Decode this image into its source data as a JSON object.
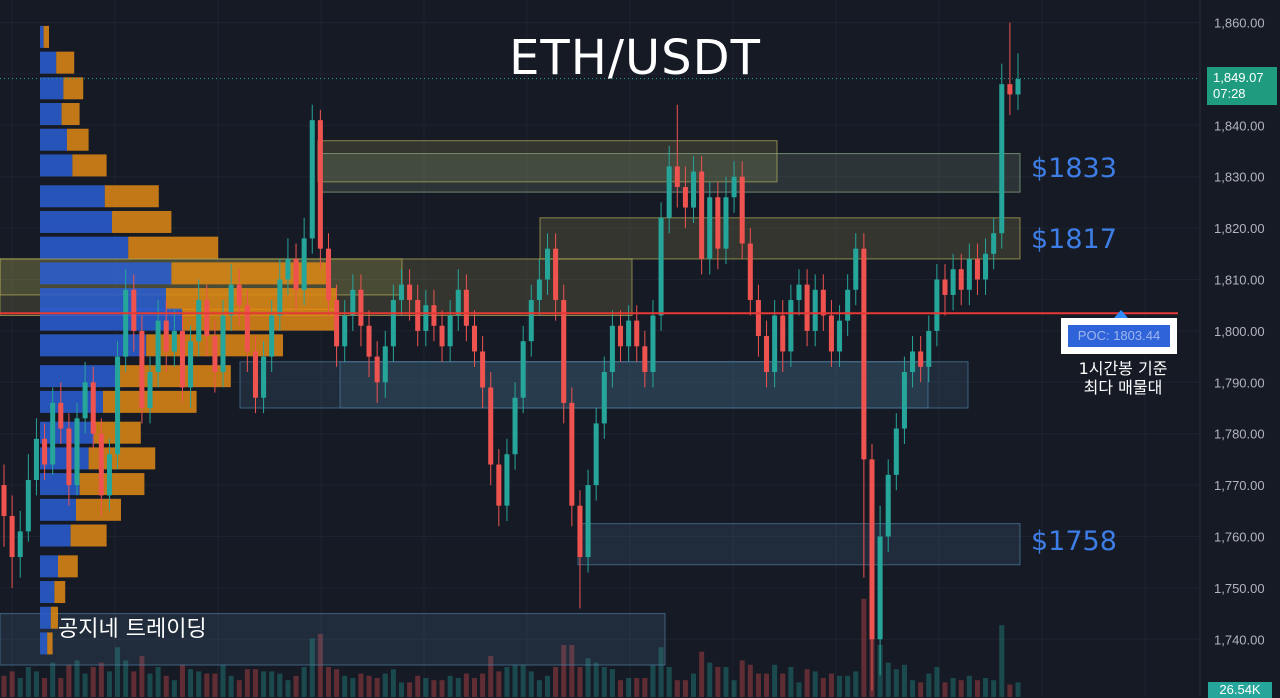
{
  "chart_data": {
    "type": "candlestick",
    "title": "ETH/USDT",
    "ylim": [
      1732,
      1862
    ],
    "y_ticks": [
      "1,860.00",
      "1,850.00",
      "1,840.00",
      "1,830.00",
      "1,820.00",
      "1,810.00",
      "1,800.00",
      "1,790.00",
      "1,780.00",
      "1,770.00",
      "1,760.00",
      "1,750.00",
      "1,740.00"
    ],
    "y_tick_values": [
      1860,
      1850,
      1840,
      1830,
      1820,
      1810,
      1800,
      1790,
      1780,
      1770,
      1760,
      1750,
      1740
    ],
    "last_price": 1849.07,
    "last_price_label": "1,849.07",
    "countdown": "07:28",
    "volume_label": "26.54K",
    "poc_value": 1803.44,
    "poc_label": "POC: 1803.44",
    "poc_note": [
      "1시간봉 기준",
      "최다 매물대"
    ],
    "levels": [
      {
        "value": 1833,
        "label": "$1833"
      },
      {
        "value": 1817,
        "label": "$1817"
      },
      {
        "value": 1758,
        "label": "$1758"
      }
    ],
    "zones": [
      {
        "top": 1837,
        "bottom": 1829,
        "color": "#b7b05a"
      },
      {
        "top": 1834.5,
        "bottom": 1827,
        "color": "#8fae88"
      },
      {
        "top": 1822,
        "bottom": 1814,
        "color": "#b7b05a"
      },
      {
        "top": 1814,
        "bottom": 1807,
        "color": "#b7b05a"
      },
      {
        "top": 1814,
        "bottom": 1803,
        "color": "#b7b05a"
      },
      {
        "top": 1794,
        "bottom": 1785,
        "color": "#4f7ea0"
      },
      {
        "top": 1794,
        "bottom": 1785,
        "color": "#4f7ea0"
      },
      {
        "top": 1762.5,
        "bottom": 1754.5,
        "color": "#4f7ea0"
      },
      {
        "top": 1745,
        "bottom": 1735,
        "color": "#4f7ea0"
      }
    ],
    "volume_profile": [
      {
        "price": 1857,
        "up": 4,
        "down": 6
      },
      {
        "price": 1852,
        "up": 18,
        "down": 20
      },
      {
        "price": 1847,
        "up": 26,
        "down": 22
      },
      {
        "price": 1842,
        "up": 24,
        "down": 20
      },
      {
        "price": 1837,
        "up": 30,
        "down": 24
      },
      {
        "price": 1832,
        "up": 36,
        "down": 38
      },
      {
        "price": 1826,
        "up": 72,
        "down": 60
      },
      {
        "price": 1821,
        "up": 80,
        "down": 66
      },
      {
        "price": 1816,
        "up": 98,
        "down": 100
      },
      {
        "price": 1811,
        "up": 146,
        "down": 174
      },
      {
        "price": 1806,
        "up": 140,
        "down": 190
      },
      {
        "price": 1802,
        "up": 158,
        "down": 172
      },
      {
        "price": 1797,
        "up": 118,
        "down": 152
      },
      {
        "price": 1791,
        "up": 86,
        "down": 126
      },
      {
        "price": 1786,
        "up": 70,
        "down": 104
      },
      {
        "price": 1780,
        "up": 60,
        "down": 52
      },
      {
        "price": 1775,
        "up": 54,
        "down": 74
      },
      {
        "price": 1770,
        "up": 44,
        "down": 72
      },
      {
        "price": 1765,
        "up": 40,
        "down": 50
      },
      {
        "price": 1760,
        "up": 34,
        "down": 40
      },
      {
        "price": 1754,
        "up": 20,
        "down": 22
      },
      {
        "price": 1749,
        "up": 16,
        "down": 12
      },
      {
        "price": 1744,
        "up": 12,
        "down": 8
      },
      {
        "price": 1739,
        "up": 8,
        "down": 6
      }
    ],
    "candles": [
      [
        1770,
        1764,
        1774,
        1758
      ],
      [
        1764,
        1756,
        1768,
        1750
      ],
      [
        1756,
        1761,
        1765,
        1752
      ],
      [
        1761,
        1771,
        1776,
        1759
      ],
      [
        1771,
        1779,
        1783,
        1768
      ],
      [
        1779,
        1774,
        1782,
        1771
      ],
      [
        1774,
        1786,
        1789,
        1772
      ],
      [
        1786,
        1781,
        1790,
        1778
      ],
      [
        1781,
        1770,
        1784,
        1766
      ],
      [
        1770,
        1783,
        1786,
        1768
      ],
      [
        1783,
        1790,
        1794,
        1780
      ],
      [
        1790,
        1780,
        1793,
        1777
      ],
      [
        1780,
        1768,
        1783,
        1764
      ],
      [
        1768,
        1776,
        1779,
        1765
      ],
      [
        1776,
        1795,
        1798,
        1773
      ],
      [
        1795,
        1808,
        1812,
        1792
      ],
      [
        1808,
        1800,
        1811,
        1796
      ],
      [
        1800,
        1785,
        1803,
        1782
      ],
      [
        1785,
        1792,
        1795,
        1782
      ],
      [
        1792,
        1802,
        1806,
        1789
      ],
      [
        1802,
        1796,
        1806,
        1792
      ],
      [
        1796,
        1800,
        1804,
        1793
      ],
      [
        1800,
        1789,
        1803,
        1786
      ],
      [
        1789,
        1798,
        1801,
        1785
      ],
      [
        1798,
        1806,
        1810,
        1795
      ],
      [
        1806,
        1799,
        1809,
        1795
      ],
      [
        1799,
        1792,
        1802,
        1788
      ],
      [
        1792,
        1803,
        1806,
        1789
      ],
      [
        1803,
        1809,
        1813,
        1800
      ],
      [
        1809,
        1805,
        1812,
        1801
      ],
      [
        1805,
        1796,
        1808,
        1792
      ],
      [
        1796,
        1787,
        1799,
        1784
      ],
      [
        1787,
        1795,
        1798,
        1784
      ],
      [
        1795,
        1803,
        1806,
        1792
      ],
      [
        1803,
        1810,
        1814,
        1800
      ],
      [
        1810,
        1814,
        1818,
        1807
      ],
      [
        1814,
        1808,
        1817,
        1804
      ],
      [
        1808,
        1818,
        1822,
        1805
      ],
      [
        1818,
        1841,
        1844,
        1815
      ],
      [
        1841,
        1816,
        1843,
        1812
      ],
      [
        1816,
        1806,
        1819,
        1803
      ],
      [
        1806,
        1797,
        1809,
        1793
      ],
      [
        1797,
        1803,
        1806,
        1794
      ],
      [
        1803,
        1808,
        1811,
        1800
      ],
      [
        1808,
        1801,
        1811,
        1797
      ],
      [
        1801,
        1795,
        1804,
        1791
      ],
      [
        1795,
        1790,
        1798,
        1786
      ],
      [
        1790,
        1797,
        1800,
        1787
      ],
      [
        1797,
        1806,
        1809,
        1794
      ],
      [
        1806,
        1809,
        1812,
        1803
      ],
      [
        1809,
        1806,
        1812,
        1802
      ],
      [
        1806,
        1800,
        1809,
        1797
      ],
      [
        1800,
        1805,
        1808,
        1797
      ],
      [
        1805,
        1801,
        1808,
        1798
      ],
      [
        1801,
        1797,
        1804,
        1794
      ],
      [
        1797,
        1803,
        1806,
        1794
      ],
      [
        1803,
        1808,
        1812,
        1800
      ],
      [
        1808,
        1801,
        1811,
        1798
      ],
      [
        1801,
        1796,
        1804,
        1793
      ],
      [
        1796,
        1789,
        1799,
        1785
      ],
      [
        1789,
        1774,
        1792,
        1770
      ],
      [
        1774,
        1766,
        1777,
        1762
      ],
      [
        1766,
        1776,
        1779,
        1763
      ],
      [
        1776,
        1787,
        1790,
        1773
      ],
      [
        1787,
        1798,
        1801,
        1784
      ],
      [
        1798,
        1806,
        1809,
        1795
      ],
      [
        1806,
        1810,
        1814,
        1803
      ],
      [
        1810,
        1816,
        1819,
        1807
      ],
      [
        1816,
        1806,
        1819,
        1802
      ],
      [
        1806,
        1786,
        1809,
        1782
      ],
      [
        1786,
        1766,
        1789,
        1762
      ],
      [
        1766,
        1756,
        1769,
        1746
      ],
      [
        1756,
        1770,
        1773,
        1753
      ],
      [
        1770,
        1782,
        1785,
        1767
      ],
      [
        1782,
        1792,
        1795,
        1779
      ],
      [
        1792,
        1801,
        1804,
        1789
      ],
      [
        1801,
        1797,
        1804,
        1794
      ],
      [
        1797,
        1802,
        1805,
        1794
      ],
      [
        1802,
        1797,
        1805,
        1794
      ],
      [
        1797,
        1792,
        1800,
        1789
      ],
      [
        1792,
        1803,
        1806,
        1789
      ],
      [
        1803,
        1822,
        1825,
        1800
      ],
      [
        1822,
        1832,
        1836,
        1819
      ],
      [
        1832,
        1828,
        1844,
        1824
      ],
      [
        1828,
        1824,
        1832,
        1820
      ],
      [
        1824,
        1831,
        1834,
        1821
      ],
      [
        1831,
        1814,
        1834,
        1811
      ],
      [
        1814,
        1826,
        1829,
        1811
      ],
      [
        1826,
        1816,
        1829,
        1812
      ],
      [
        1816,
        1826,
        1830,
        1813
      ],
      [
        1826,
        1830,
        1833,
        1823
      ],
      [
        1830,
        1817,
        1833,
        1814
      ],
      [
        1817,
        1806,
        1820,
        1803
      ],
      [
        1806,
        1799,
        1809,
        1795
      ],
      [
        1799,
        1792,
        1802,
        1789
      ],
      [
        1792,
        1803,
        1806,
        1789
      ],
      [
        1803,
        1796,
        1806,
        1792
      ],
      [
        1796,
        1806,
        1809,
        1793
      ],
      [
        1806,
        1809,
        1812,
        1803
      ],
      [
        1809,
        1800,
        1812,
        1797
      ],
      [
        1800,
        1808,
        1811,
        1797
      ],
      [
        1808,
        1803,
        1811,
        1800
      ],
      [
        1803,
        1796,
        1806,
        1793
      ],
      [
        1796,
        1802,
        1805,
        1793
      ],
      [
        1802,
        1808,
        1811,
        1799
      ],
      [
        1808,
        1816,
        1819,
        1805
      ],
      [
        1816,
        1775,
        1819,
        1752
      ],
      [
        1775,
        1740,
        1778,
        1730
      ],
      [
        1740,
        1760,
        1766,
        1733
      ],
      [
        1760,
        1772,
        1775,
        1757
      ],
      [
        1772,
        1781,
        1784,
        1769
      ],
      [
        1781,
        1792,
        1795,
        1778
      ],
      [
        1792,
        1796,
        1799,
        1789
      ],
      [
        1796,
        1793,
        1799,
        1790
      ],
      [
        1793,
        1800,
        1803,
        1790
      ],
      [
        1800,
        1810,
        1813,
        1797
      ],
      [
        1810,
        1807,
        1813,
        1803
      ],
      [
        1807,
        1812,
        1815,
        1804
      ],
      [
        1812,
        1808,
        1815,
        1805
      ],
      [
        1808,
        1814,
        1817,
        1805
      ],
      [
        1814,
        1810,
        1817,
        1807
      ],
      [
        1810,
        1815,
        1818,
        1807
      ],
      [
        1815,
        1819,
        1822,
        1812
      ],
      [
        1819,
        1848,
        1852,
        1816
      ],
      [
        1848,
        1846,
        1860,
        1842
      ],
      [
        1846,
        1849,
        1854,
        1843
      ]
    ]
  }
}
